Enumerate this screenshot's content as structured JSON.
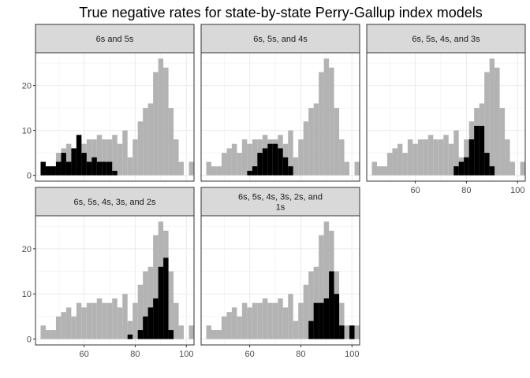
{
  "chart_data": {
    "type": "histogram",
    "title": "True negative rates for state-by-state Perry-Gallup index models",
    "x_ticks": [
      60,
      80,
      100
    ],
    "y_ticks": [
      0,
      10,
      20
    ],
    "xlim": [
      41,
      103
    ],
    "ylim": [
      -1.3,
      27.3
    ],
    "bin_width": 2,
    "colors": {
      "background_bars": "#b3b3b3",
      "highlight_bars": "#000000",
      "strip": "#d9d9d9",
      "grid": "#ebebeb",
      "panel_border": "#333333"
    },
    "background_counts": {
      "x": [
        44,
        46,
        48,
        50,
        52,
        54,
        56,
        58,
        60,
        62,
        64,
        66,
        68,
        70,
        72,
        74,
        76,
        78,
        80,
        82,
        84,
        86,
        88,
        90,
        92,
        94,
        96,
        98,
        100,
        102
      ],
      "values": [
        3,
        2,
        2,
        5,
        6,
        7,
        5,
        8,
        7,
        8,
        8,
        9,
        8,
        8,
        9,
        7,
        10,
        4,
        8,
        12,
        15,
        16,
        23,
        26,
        24,
        15,
        8,
        3,
        0,
        3
      ]
    },
    "panels": [
      {
        "label": "6s and 5s",
        "highlight": {
          "x": [
            44,
            46,
            48,
            50,
            52,
            54,
            56,
            58,
            60,
            62,
            64,
            66,
            68,
            70,
            72
          ],
          "values": [
            3,
            2,
            2,
            3,
            5,
            3,
            6,
            9,
            5,
            3,
            4,
            3,
            3,
            3,
            1
          ]
        }
      },
      {
        "label": "6s, 5s, and 4s",
        "highlight": {
          "x": [
            60,
            62,
            64,
            66,
            68,
            70,
            72,
            74,
            76
          ],
          "values": [
            1,
            2,
            5,
            6,
            7,
            7,
            6,
            4,
            2
          ]
        }
      },
      {
        "label": "6s, 5s, 4s, and 3s",
        "highlight": {
          "x": [
            76,
            78,
            80,
            82,
            84,
            86,
            88,
            90
          ],
          "values": [
            2,
            3,
            4,
            8,
            11,
            11,
            5,
            2
          ]
        }
      },
      {
        "label": "6s, 5s, 4s, 3s, and 2s",
        "highlight": {
          "x": [
            78,
            80,
            82,
            84,
            86,
            88,
            90,
            92,
            94
          ],
          "values": [
            1,
            0,
            2,
            5,
            7,
            9,
            16,
            18,
            2
          ]
        }
      },
      {
        "label": "6s, 5s, 4s, 3s, 2s, and 1s",
        "highlight": {
          "x": [
            84,
            86,
            88,
            90,
            92,
            94,
            96,
            98,
            100
          ],
          "values": [
            4,
            8,
            8,
            9,
            15,
            10,
            3,
            0,
            3
          ]
        }
      }
    ]
  }
}
